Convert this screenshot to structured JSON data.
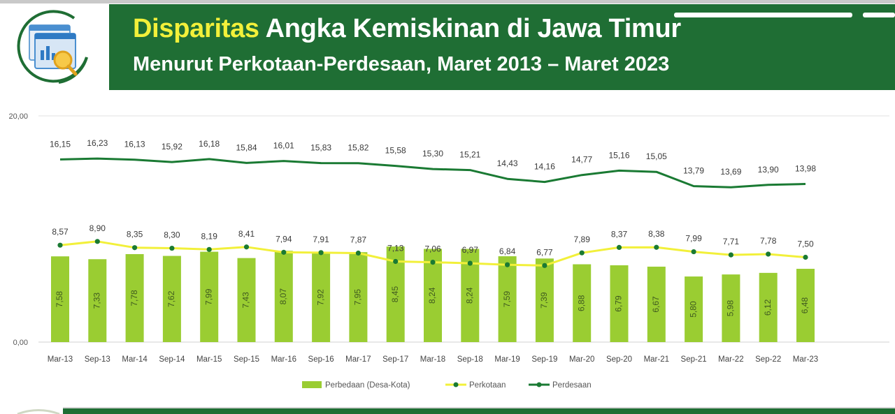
{
  "header": {
    "title_highlight": "Disparitas",
    "title_rest": " Angka Kemiskinan di Jawa Timur",
    "subtitle": "Menurut Perkotaan-Perdesaan, Maret 2013 – Maret 2023",
    "icon": "analytics-magnifier-icon"
  },
  "colors": {
    "banner": "#1f6e34",
    "highlight": "#f2f03a",
    "bar": "#9acd32",
    "perkotaan_line": "#f2f03a",
    "perkotaan_marker": "#1a7a33",
    "perdesaan_line": "#1a7a33"
  },
  "chart_data": {
    "type": "bar",
    "categories": [
      "Mar-13",
      "Sep-13",
      "Mar-14",
      "Sep-14",
      "Mar-15",
      "Sep-15",
      "Mar-16",
      "Sep-16",
      "Mar-17",
      "Sep-17",
      "Mar-18",
      "Sep-18",
      "Mar-19",
      "Sep-19",
      "Mar-20",
      "Sep-20",
      "Mar-21",
      "Sep-21",
      "Mar-22",
      "Sep-22",
      "Mar-23"
    ],
    "y_ticks": [
      "0,00",
      "20,00"
    ],
    "ylim": [
      0,
      20
    ],
    "grid": true,
    "legend_position": "bottom-center",
    "series": [
      {
        "name": "Perbedaan (Desa-Kota)",
        "type": "bar",
        "values": [
          7.58,
          7.33,
          7.78,
          7.62,
          7.99,
          7.43,
          8.07,
          7.92,
          7.95,
          8.45,
          8.24,
          8.24,
          7.59,
          7.39,
          6.88,
          6.79,
          6.67,
          5.8,
          5.98,
          6.12,
          6.48
        ],
        "labels": [
          "7,58",
          "7,33",
          "7,78",
          "7,62",
          "7,99",
          "7,43",
          "8,07",
          "7,92",
          "7,95",
          "8,45",
          "8,24",
          "8,24",
          "7,59",
          "7,39",
          "6,88",
          "6,79",
          "6,67",
          "5,80",
          "5,98",
          "6,12",
          "6,48"
        ]
      },
      {
        "name": "Perkotaan",
        "type": "line",
        "values": [
          8.57,
          8.9,
          8.35,
          8.3,
          8.19,
          8.41,
          7.94,
          7.91,
          7.87,
          7.13,
          7.06,
          6.97,
          6.84,
          6.77,
          7.89,
          8.37,
          8.38,
          7.99,
          7.71,
          7.78,
          7.5
        ],
        "labels": [
          "8,57",
          "8,90",
          "8,35",
          "8,30",
          "8,19",
          "8,41",
          "7,94",
          "7,91",
          "7,87",
          "7,13",
          "7,06",
          "6,97",
          "6,84",
          "6,77",
          "7,89",
          "8,37",
          "8,38",
          "7,99",
          "7,71",
          "7,78",
          "7,50"
        ]
      },
      {
        "name": "Perdesaan",
        "type": "line",
        "values": [
          16.15,
          16.23,
          16.13,
          15.92,
          16.18,
          15.84,
          16.01,
          15.83,
          15.82,
          15.58,
          15.3,
          15.21,
          14.43,
          14.16,
          14.77,
          15.16,
          15.05,
          13.79,
          13.69,
          13.9,
          13.98
        ],
        "labels": [
          "16,15",
          "16,23",
          "16,13",
          "15,92",
          "16,18",
          "15,84",
          "16,01",
          "15,83",
          "15,82",
          "15,58",
          "15,30",
          "15,21",
          "14,43",
          "14,16",
          "14,77",
          "15,16",
          "15,05",
          "13,79",
          "13,69",
          "13,90",
          "13,98"
        ]
      }
    ]
  }
}
